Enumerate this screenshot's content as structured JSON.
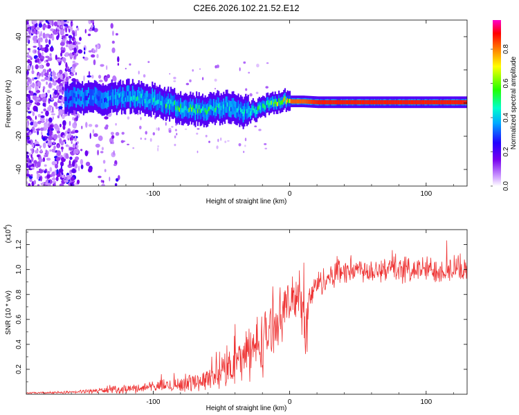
{
  "figure": {
    "title": "C2E6.2026.102.21.52.E12"
  },
  "chart_data": [
    {
      "type": "heatmap",
      "name": "spectrogram",
      "title": "C2E6.2026.102.21.52.E12",
      "xlabel": "Height of straight line (km)",
      "ylabel": "Frequency (Hz)",
      "xlim": [
        -193,
        130
      ],
      "ylim": [
        -50,
        50
      ],
      "xticks": [
        -100,
        0,
        100
      ],
      "xtick_labels": [
        "-100",
        "0",
        "100"
      ],
      "yticks": [
        -40,
        -20,
        0,
        20,
        40
      ],
      "ytick_labels": [
        "-40",
        "-20",
        "0",
        "20",
        "40"
      ],
      "colorbar": {
        "label": "Normalized spectral amplitude",
        "range": [
          0,
          0.97
        ],
        "ticks": [
          0,
          0.2,
          0.4,
          0.6,
          0.8
        ],
        "tick_labels": [
          "0.0",
          "0.2",
          "0.4",
          "0.6",
          "0.8"
        ],
        "colormap": "rainbow-violet-to-magenta"
      },
      "ridge": {
        "description_points_x": [
          -160,
          -140,
          -120,
          -100,
          -80,
          -60,
          -45,
          -35,
          -25,
          -15,
          -5,
          0,
          10,
          20,
          50,
          100,
          130
        ],
        "center_freq_hz": [
          3,
          3,
          4,
          2,
          -3,
          -4,
          -2,
          -5,
          -4,
          0,
          1,
          1,
          1,
          0.5,
          0.5,
          0.5,
          0.5
        ],
        "peak_amplitude": [
          0.35,
          0.4,
          0.5,
          0.55,
          0.7,
          0.6,
          0.5,
          0.5,
          0.6,
          0.7,
          0.8,
          0.85,
          0.85,
          0.9,
          0.9,
          0.9,
          0.9
        ]
      },
      "noise_region_x": [
        -193,
        -125
      ]
    },
    {
      "type": "line",
      "name": "snr",
      "xlabel": "Height of straight line (km)",
      "ylabel": "SNR (10 * v/v)",
      "y_multiplier": "(x10",
      "y_multiplier_exp": "4",
      "y_multiplier_close": ")",
      "xlim": [
        -193,
        130
      ],
      "ylim": [
        0,
        1.32
      ],
      "xticks": [
        -100,
        0,
        100
      ],
      "xtick_labels": [
        "-100",
        "0",
        "100"
      ],
      "yticks": [
        0.2,
        0.4,
        0.6,
        0.8,
        1.0,
        1.2
      ],
      "ytick_labels": [
        "0.2",
        "0.4",
        "0.6",
        "0.8",
        "1.0",
        "1.2"
      ],
      "color": "#ee3333",
      "envelope": {
        "x": [
          -193,
          -160,
          -140,
          -120,
          -100,
          -80,
          -60,
          -50,
          -40,
          -30,
          -20,
          -15,
          -10,
          -5,
          0,
          5,
          8,
          10,
          12,
          15,
          20,
          30,
          40,
          50,
          70,
          90,
          110,
          130
        ],
        "mean": [
          0.01,
          0.015,
          0.03,
          0.04,
          0.06,
          0.08,
          0.12,
          0.18,
          0.25,
          0.33,
          0.42,
          0.5,
          0.58,
          0.68,
          0.72,
          0.8,
          0.9,
          0.55,
          0.45,
          0.8,
          0.88,
          0.95,
          1.0,
          1.0,
          1.0,
          1.0,
          1.0,
          1.0
        ],
        "spread": [
          0.005,
          0.01,
          0.02,
          0.03,
          0.04,
          0.06,
          0.08,
          0.12,
          0.16,
          0.2,
          0.25,
          0.2,
          0.18,
          0.2,
          0.15,
          0.18,
          0.25,
          0.3,
          0.3,
          0.12,
          0.1,
          0.1,
          0.1,
          0.1,
          0.1,
          0.1,
          0.1,
          0.1
        ]
      }
    }
  ]
}
